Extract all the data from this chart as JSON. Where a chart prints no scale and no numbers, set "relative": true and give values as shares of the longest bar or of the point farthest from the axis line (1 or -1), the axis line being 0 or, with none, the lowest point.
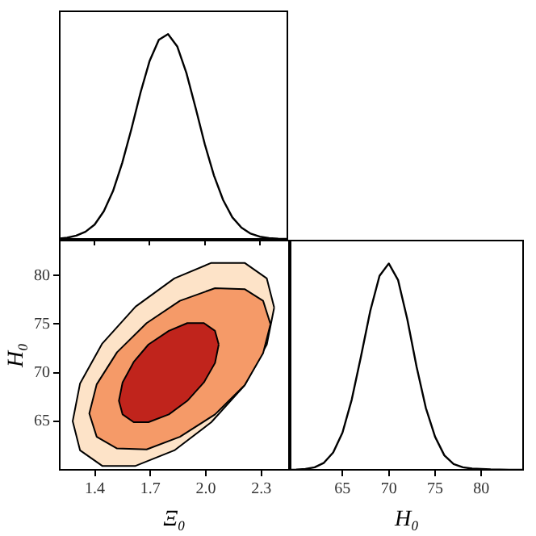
{
  "chart_data": [
    {
      "type": "line",
      "relative": true,
      "tick_labels": false,
      "color": "#000000",
      "xlim": [
        1.21,
        2.45
      ],
      "xticks": [
        1.4,
        1.7,
        2.0,
        2.3
      ],
      "x": [
        1.21,
        1.25,
        1.3,
        1.35,
        1.4,
        1.45,
        1.5,
        1.55,
        1.6,
        1.65,
        1.7,
        1.75,
        1.8,
        1.85,
        1.9,
        1.95,
        2.0,
        2.05,
        2.1,
        2.15,
        2.2,
        2.25,
        2.3,
        2.35,
        2.4,
        2.45
      ],
      "values": [
        0.002,
        0.006,
        0.016,
        0.035,
        0.07,
        0.135,
        0.233,
        0.37,
        0.535,
        0.714,
        0.87,
        0.972,
        1.0,
        0.94,
        0.81,
        0.64,
        0.463,
        0.31,
        0.19,
        0.106,
        0.055,
        0.026,
        0.011,
        0.004,
        0.001,
        0.0
      ]
    },
    {
      "type": "area",
      "xlabel": "Ξ₀",
      "ylabel": "H₀",
      "xlim": [
        1.21,
        2.45
      ],
      "ylim": [
        60,
        83.6
      ],
      "xticks": [
        1.4,
        1.7,
        {
          "value": 2,
          "label": "2.0"
        },
        2.3
      ],
      "yticks": [
        65,
        70,
        75,
        80
      ],
      "series": [
        {
          "color": "#fde3c8",
          "x": [
            2.37,
            2.33,
            2.21,
            2.03,
            1.83,
            1.62,
            1.44,
            1.32,
            1.28,
            1.32,
            1.44,
            1.62,
            1.83,
            2.03,
            2.21,
            2.33,
            2.37
          ],
          "values": [
            76.7,
            79.7,
            81.3,
            81.3,
            79.7,
            76.8,
            73.0,
            68.9,
            65.0,
            62.0,
            60.4,
            60.4,
            62.0,
            64.9,
            68.7,
            72.9,
            76.7
          ]
        },
        {
          "color": "#f59a68",
          "x": [
            2.35,
            2.31,
            2.21,
            2.05,
            1.86,
            1.68,
            1.52,
            1.41,
            1.37,
            1.41,
            1.52,
            1.68,
            1.86,
            2.05,
            2.21,
            2.31,
            2.35
          ],
          "values": [
            75.0,
            77.4,
            78.6,
            78.7,
            77.4,
            75.1,
            72.1,
            68.8,
            65.8,
            63.4,
            62.2,
            62.1,
            63.4,
            65.7,
            68.7,
            72.0,
            75.0
          ]
        },
        {
          "color": "#c0241c",
          "x": [
            2.07,
            2.05,
            1.99,
            1.9,
            1.8,
            1.69,
            1.61,
            1.55,
            1.53,
            1.55,
            1.61,
            1.69,
            1.8,
            1.9,
            1.99,
            2.05,
            2.07
          ],
          "values": [
            72.9,
            74.3,
            75.1,
            75.1,
            74.3,
            72.9,
            71.1,
            69.0,
            67.1,
            65.7,
            64.9,
            64.9,
            65.7,
            67.1,
            69.0,
            71.0,
            72.9
          ]
        }
      ]
    },
    {
      "type": "line",
      "relative": true,
      "tick_labels": "x",
      "color": "#000000",
      "xlabel": "H₀",
      "xlim": [
        59.4,
        84.5
      ],
      "xticks": [
        65,
        70,
        75,
        80
      ],
      "x": [
        59.4,
        60,
        61,
        62,
        63,
        64,
        65,
        66,
        67,
        68,
        69,
        70,
        71,
        72,
        73,
        74,
        75,
        76,
        77,
        78,
        79,
        80,
        81,
        82,
        83,
        84.5
      ],
      "values": [
        0.0,
        0.001,
        0.004,
        0.012,
        0.034,
        0.084,
        0.18,
        0.34,
        0.55,
        0.77,
        0.94,
        1.0,
        0.92,
        0.73,
        0.5,
        0.3,
        0.16,
        0.07,
        0.028,
        0.012,
        0.006,
        0.004,
        0.002,
        0.001,
        0.0,
        0.0
      ]
    }
  ]
}
